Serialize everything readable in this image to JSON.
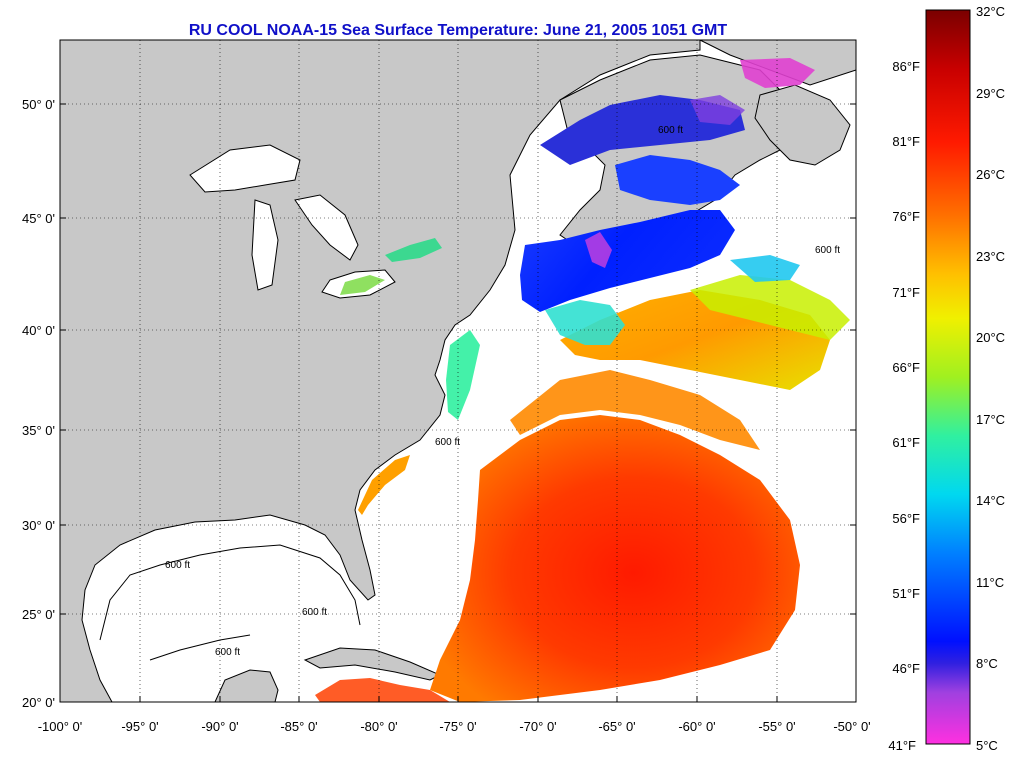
{
  "title": "RU COOL  NOAA-15  Sea Surface Temperature:  June 21, 2005 1051 GMT",
  "lat_labels": [
    "50° 0'",
    "45° 0'",
    "40° 0'",
    "35° 0'",
    "30° 0'",
    "25° 0'",
    "20° 0'"
  ],
  "lon_labels": [
    "-100° 0'",
    "-95° 0'",
    "-90° 0'",
    "-85° 0'",
    "-80° 0'",
    "-75° 0'",
    "-70° 0'",
    "-65° 0'",
    "-60° 0'",
    "-55° 0'",
    "-50° 0'"
  ],
  "isobath_label": "600 ft",
  "colorbar": {
    "celsius": [
      "32°C",
      "29°C",
      "26°C",
      "23°C",
      "20°C",
      "17°C",
      "14°C",
      "11°C",
      "8°C",
      "5°C"
    ],
    "fahrenheit": [
      "86°F",
      "81°F",
      "76°F",
      "71°F",
      "66°F",
      "61°F",
      "56°F",
      "51°F",
      "46°F",
      "41°F"
    ]
  },
  "colors": {
    "land": "#c8c8c8",
    "ocean_nodata": "#ffffff",
    "title": "#1010c8"
  }
}
